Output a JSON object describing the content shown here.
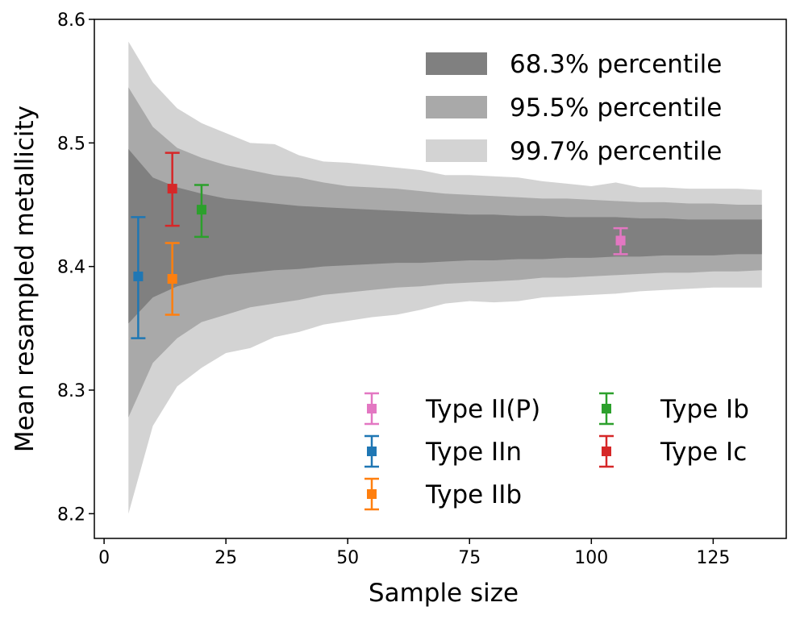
{
  "chart_data": {
    "type": "area",
    "xlabel": "Sample size",
    "ylabel": "Mean resampled metallicity",
    "xlim": [
      -2,
      140
    ],
    "ylim": [
      8.18,
      8.6
    ],
    "xticks": [
      "0",
      "25",
      "50",
      "75",
      "100",
      "125"
    ],
    "yticks": [
      "8.2",
      "8.3",
      "8.4",
      "8.5",
      "8.6"
    ],
    "bands_x": [
      5,
      10,
      15,
      20,
      25,
      30,
      35,
      40,
      45,
      50,
      55,
      60,
      65,
      70,
      75,
      80,
      85,
      90,
      95,
      100,
      105,
      110,
      115,
      120,
      125,
      130,
      135
    ],
    "bands": [
      {
        "name": "99.7% percentile",
        "color": "#d3d3d3",
        "upper": [
          8.582,
          8.549,
          8.528,
          8.516,
          8.508,
          8.5,
          8.499,
          8.49,
          8.485,
          8.484,
          8.482,
          8.48,
          8.478,
          8.474,
          8.474,
          8.473,
          8.472,
          8.469,
          8.467,
          8.465,
          8.468,
          8.464,
          8.464,
          8.463,
          8.463,
          8.463,
          8.462
        ],
        "lower": [
          8.2,
          8.271,
          8.303,
          8.318,
          8.33,
          8.334,
          8.343,
          8.347,
          8.353,
          8.356,
          8.359,
          8.361,
          8.365,
          8.37,
          8.372,
          8.371,
          8.372,
          8.375,
          8.376,
          8.377,
          8.378,
          8.38,
          8.381,
          8.382,
          8.383,
          8.383,
          8.383
        ]
      },
      {
        "name": "95.5% percentile",
        "color": "#a9a9a9",
        "upper": [
          8.545,
          8.513,
          8.496,
          8.488,
          8.482,
          8.478,
          8.474,
          8.472,
          8.468,
          8.465,
          8.464,
          8.463,
          8.461,
          8.459,
          8.458,
          8.457,
          8.456,
          8.455,
          8.455,
          8.454,
          8.453,
          8.452,
          8.452,
          8.451,
          8.451,
          8.45,
          8.45
        ],
        "lower": [
          8.278,
          8.322,
          8.342,
          8.355,
          8.361,
          8.367,
          8.37,
          8.373,
          8.377,
          8.379,
          8.381,
          8.383,
          8.384,
          8.386,
          8.387,
          8.388,
          8.389,
          8.391,
          8.391,
          8.392,
          8.393,
          8.394,
          8.395,
          8.395,
          8.396,
          8.396,
          8.397
        ]
      },
      {
        "name": "68.3% percentile",
        "color": "#808080",
        "upper": [
          8.495,
          8.472,
          8.464,
          8.459,
          8.455,
          8.453,
          8.451,
          8.449,
          8.448,
          8.447,
          8.446,
          8.445,
          8.444,
          8.443,
          8.442,
          8.442,
          8.441,
          8.441,
          8.44,
          8.44,
          8.44,
          8.439,
          8.439,
          8.438,
          8.438,
          8.438,
          8.438
        ],
        "lower": [
          8.354,
          8.375,
          8.384,
          8.389,
          8.393,
          8.395,
          8.397,
          8.398,
          8.4,
          8.401,
          8.402,
          8.403,
          8.403,
          8.404,
          8.405,
          8.405,
          8.406,
          8.406,
          8.407,
          8.407,
          8.408,
          8.408,
          8.409,
          8.409,
          8.409,
          8.41,
          8.41
        ]
      }
    ],
    "points": [
      {
        "name": "Type II(P)",
        "color": "#e377c2",
        "x": 106,
        "y": 8.421,
        "yerr_low": 8.41,
        "yerr_high": 8.431
      },
      {
        "name": "Type IIn",
        "color": "#1f77b4",
        "x": 7,
        "y": 8.392,
        "yerr_low": 8.342,
        "yerr_high": 8.44
      },
      {
        "name": "Type IIb",
        "color": "#ff7f0e",
        "x": 14,
        "y": 8.39,
        "yerr_low": 8.361,
        "yerr_high": 8.419
      },
      {
        "name": "Type Ib",
        "color": "#2ca02c",
        "x": 20,
        "y": 8.446,
        "yerr_low": 8.424,
        "yerr_high": 8.466
      },
      {
        "name": "Type Ic",
        "color": "#d62728",
        "x": 14,
        "y": 8.463,
        "yerr_low": 8.433,
        "yerr_high": 8.492
      }
    ],
    "band_legend": {
      "position": "top-right",
      "labels": [
        "68.3% percentile",
        "95.5% percentile",
        "99.7% percentile"
      ],
      "colors": [
        "#808080",
        "#a9a9a9",
        "#d3d3d3"
      ]
    },
    "point_legend": {
      "position": "lower-right",
      "columns": [
        [
          "Type II(P)",
          "Type IIn",
          "Type IIb"
        ],
        [
          "Type Ib",
          "Type Ic"
        ]
      ],
      "colors": [
        [
          "#e377c2",
          "#1f77b4",
          "#ff7f0e"
        ],
        [
          "#2ca02c",
          "#d62728"
        ]
      ]
    }
  }
}
